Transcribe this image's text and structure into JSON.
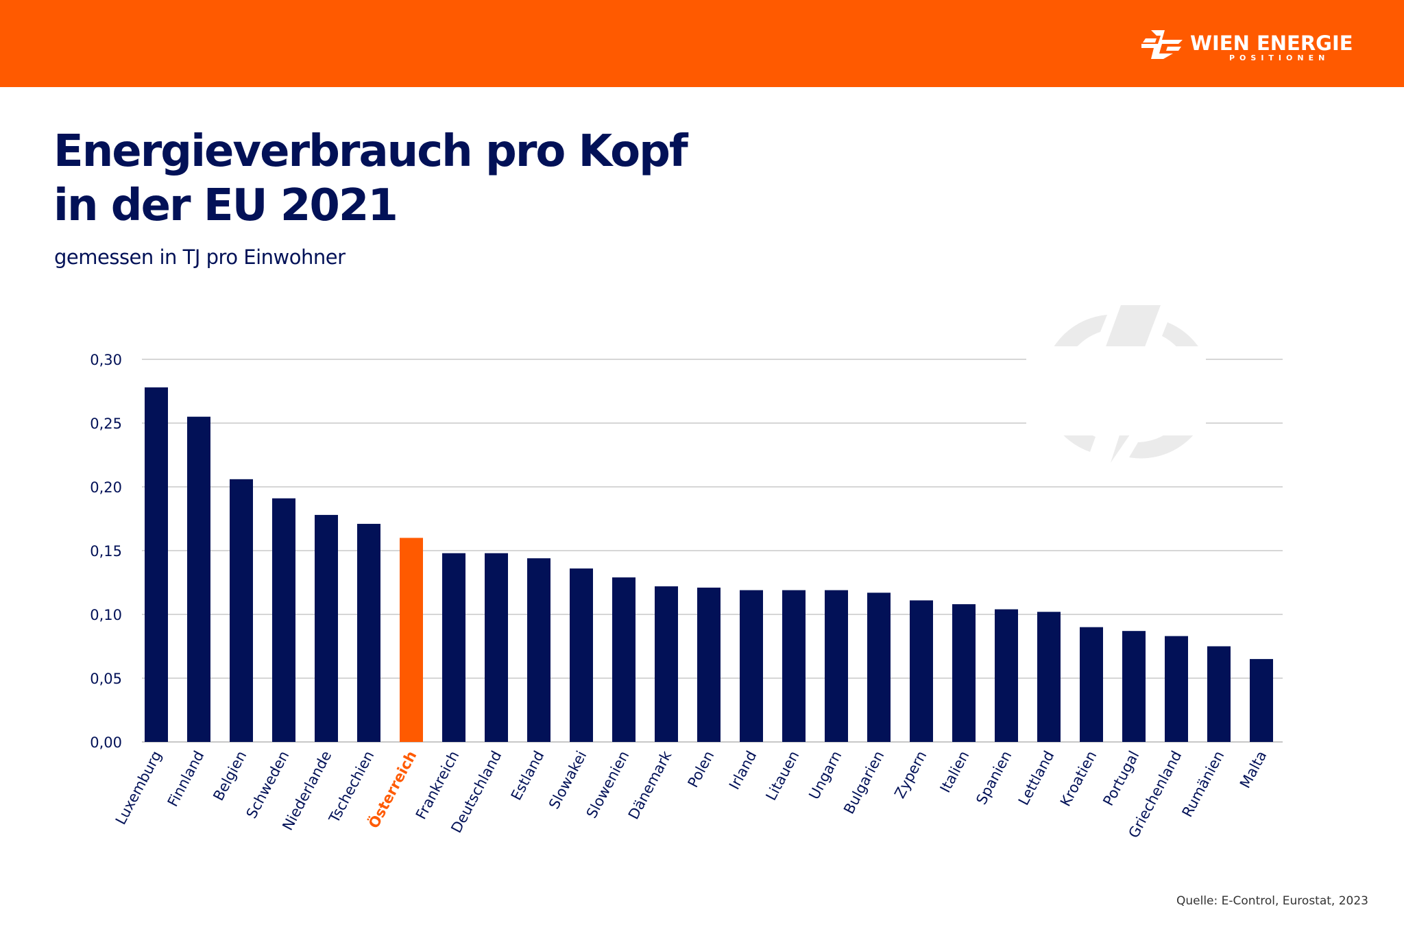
{
  "header": {
    "brand": "WIEN ENERGIE",
    "brand_sub": "POSITIONEN",
    "brand_color": "#ff5a00"
  },
  "title_line1": "Energieverbrauch pro Kopf",
  "title_line2": "in der EU 2021",
  "subtitle": "gemessen in TJ pro Einwohner",
  "source": "Quelle: E-Control, Eurostat, 2023",
  "watermark_icon": "lightning-bolt-circle-icon",
  "chart_data": {
    "type": "bar",
    "title": "Energieverbrauch pro Kopf in der EU 2021",
    "subtitle": "gemessen in TJ pro Einwohner",
    "xlabel": "",
    "ylabel": "",
    "ylim": [
      0,
      0.3
    ],
    "yticks": [
      0.0,
      0.05,
      0.1,
      0.15,
      0.2,
      0.25,
      0.3
    ],
    "ytick_labels": [
      "0,00",
      "0,05",
      "0,10",
      "0,15",
      "0,20",
      "0,25",
      "0,30"
    ],
    "grid": true,
    "legend": "none",
    "categories": [
      "Luxemburg",
      "Finnland",
      "Belgien",
      "Schweden",
      "Niederlande",
      "Tschechien",
      "Österreich",
      "Frankreich",
      "Deutschland",
      "Estland",
      "Slowakei",
      "Slowenien",
      "Dänemark",
      "Polen",
      "Irland",
      "Litauen",
      "Ungarn",
      "Bulgarien",
      "Zypern",
      "Italien",
      "Spanien",
      "Lettland",
      "Kroatien",
      "Portugal",
      "Griechenland",
      "Rumänien",
      "Malta"
    ],
    "values": [
      0.278,
      0.255,
      0.206,
      0.191,
      0.178,
      0.171,
      0.16,
      0.148,
      0.148,
      0.144,
      0.136,
      0.129,
      0.122,
      0.121,
      0.119,
      0.119,
      0.119,
      0.117,
      0.111,
      0.108,
      0.104,
      0.102,
      0.09,
      0.087,
      0.083,
      0.075,
      0.065
    ],
    "highlight": "Österreich",
    "colors": {
      "default": "#021157",
      "highlight": "#ff5a00",
      "grid": "#c8c8c8",
      "text": "#021157"
    }
  }
}
